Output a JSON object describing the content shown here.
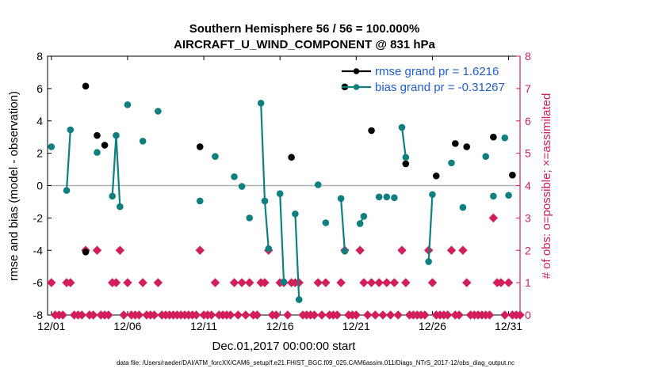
{
  "chart_data": {
    "type": "scatter",
    "title": "Southern Hemisphere 56 / 56 = 100.000%",
    "subtitle": "AIRCRAFT_U_WIND_COMPONENT @ 831 hPa",
    "xlabel": "Dec.01,2017 00:00:00 start",
    "ylabel": "rmse and bias (model - observation)",
    "ylabel_right": "# of obs: o=possible; ×=assimilated",
    "footnote": "data file: /Users/raeder/DAI/ATM_forcXX/CAM6_setup/f.e21.FHIST_BGC.f09_025.CAM6assim.011/Diags_NTrS_2017-12/obs_diag_output.nc",
    "xlim": [
      0.75,
      31.75
    ],
    "ylim": [
      -8,
      8
    ],
    "ylim_right": [
      0,
      8
    ],
    "x_ticks": [
      {
        "v": 1,
        "label": "12/01"
      },
      {
        "v": 6,
        "label": "12/06"
      },
      {
        "v": 11,
        "label": "12/11"
      },
      {
        "v": 16,
        "label": "12/16"
      },
      {
        "v": 21,
        "label": "12/21"
      },
      {
        "v": 26,
        "label": "12/26"
      },
      {
        "v": 31,
        "label": "12/31"
      }
    ],
    "y_ticks": [
      {
        "v": -8,
        "label": "-8"
      },
      {
        "v": -6,
        "label": "-6"
      },
      {
        "v": -4,
        "label": "-4"
      },
      {
        "v": -2,
        "label": "-2"
      },
      {
        "v": 0,
        "label": "0"
      },
      {
        "v": 2,
        "label": "2"
      },
      {
        "v": 4,
        "label": "4"
      },
      {
        "v": 6,
        "label": "6"
      },
      {
        "v": 8,
        "label": "8"
      }
    ],
    "y_ticks_right": [
      {
        "v": 0,
        "label": "0"
      },
      {
        "v": 1,
        "label": "1"
      },
      {
        "v": 2,
        "label": "2"
      },
      {
        "v": 3,
        "label": "3"
      },
      {
        "v": 4,
        "label": "4"
      },
      {
        "v": 5,
        "label": "5"
      },
      {
        "v": 6,
        "label": "6"
      },
      {
        "v": 7,
        "label": "7"
      },
      {
        "v": 8,
        "label": "8"
      }
    ],
    "legend": [
      {
        "name": "rmse grand pr = 1.6216",
        "color": "#000000"
      },
      {
        "name": "bias grand pr = -0.31267",
        "color": "#0f7f7f"
      }
    ],
    "series": [
      {
        "name": "rmse",
        "color": "#000000",
        "points": [
          [
            3.25,
            6.15
          ],
          [
            3.25,
            -4.1
          ],
          [
            4.0,
            3.1
          ],
          [
            4.5,
            2.5
          ],
          [
            10.75,
            2.4
          ],
          [
            16.75,
            1.75
          ],
          [
            20.25,
            6.1
          ],
          [
            22.0,
            3.4
          ],
          [
            24.25,
            1.35
          ],
          [
            26.25,
            0.6
          ],
          [
            27.5,
            2.6
          ],
          [
            28.25,
            2.4
          ],
          [
            30.0,
            3.0
          ],
          [
            31.25,
            0.65
          ]
        ],
        "segments": []
      },
      {
        "name": "bias",
        "color": "#0f7f7f",
        "points": [
          [
            1.0,
            2.4
          ],
          [
            2.0,
            -0.3
          ],
          [
            2.25,
            3.45
          ],
          [
            4.0,
            2.05
          ],
          [
            5.0,
            -0.65
          ],
          [
            5.25,
            3.1
          ],
          [
            5.5,
            -1.3
          ],
          [
            6.0,
            5.0
          ],
          [
            7.0,
            2.75
          ],
          [
            8.0,
            4.6
          ],
          [
            10.75,
            -0.95
          ],
          [
            11.75,
            1.8
          ],
          [
            13.0,
            0.55
          ],
          [
            13.5,
            -0.05
          ],
          [
            14.0,
            -2.0
          ],
          [
            14.75,
            5.1
          ],
          [
            15.0,
            -0.95
          ],
          [
            15.25,
            -3.9
          ],
          [
            16.0,
            -0.5
          ],
          [
            16.25,
            -5.95
          ],
          [
            17.0,
            -1.75
          ],
          [
            17.25,
            -7.05
          ],
          [
            18.5,
            0.05
          ],
          [
            19.0,
            -2.3
          ],
          [
            20.0,
            -0.8
          ],
          [
            20.25,
            -4.05
          ],
          [
            21.25,
            -2.35
          ],
          [
            21.5,
            -1.9
          ],
          [
            22.5,
            -0.7
          ],
          [
            23.0,
            -0.7
          ],
          [
            23.5,
            -0.75
          ],
          [
            24.0,
            3.6
          ],
          [
            24.25,
            1.75
          ],
          [
            25.75,
            -4.7
          ],
          [
            26.0,
            -0.55
          ],
          [
            27.25,
            1.4
          ],
          [
            28.0,
            -1.35
          ],
          [
            29.5,
            1.8
          ],
          [
            30.0,
            -0.65
          ],
          [
            30.75,
            2.95
          ],
          [
            31.0,
            -0.6
          ]
        ],
        "segments": [
          [
            [
              2.0,
              -0.3
            ],
            [
              2.25,
              3.45
            ]
          ],
          [
            [
              5.0,
              -0.65
            ],
            [
              5.25,
              3.1
            ],
            [
              5.5,
              -1.3
            ]
          ],
          [
            [
              14.75,
              5.1
            ],
            [
              15.0,
              -0.95
            ],
            [
              15.25,
              -3.9
            ]
          ],
          [
            [
              16.0,
              -0.5
            ],
            [
              16.25,
              -5.95
            ]
          ],
          [
            [
              17.0,
              -1.75
            ],
            [
              17.25,
              -7.05
            ]
          ],
          [
            [
              20.0,
              -0.8
            ],
            [
              20.25,
              -4.05
            ]
          ],
          [
            [
              21.25,
              -2.35
            ],
            [
              21.5,
              -1.9
            ]
          ],
          [
            [
              24.0,
              3.6
            ],
            [
              24.25,
              1.75
            ]
          ],
          [
            [
              25.75,
              -4.7
            ],
            [
              26.0,
              -0.55
            ]
          ]
        ]
      }
    ],
    "obs_possible": {
      "name": "# obs possible",
      "color": "#d21f5a",
      "counts": [
        [
          1.0,
          1
        ],
        [
          1.25,
          0
        ],
        [
          1.5,
          0
        ],
        [
          1.75,
          0
        ],
        [
          2.0,
          1
        ],
        [
          2.25,
          1
        ],
        [
          2.5,
          0
        ],
        [
          2.75,
          0
        ],
        [
          3.0,
          0
        ],
        [
          3.25,
          2
        ],
        [
          3.5,
          0
        ],
        [
          3.75,
          0
        ],
        [
          4.0,
          2
        ],
        [
          4.25,
          0
        ],
        [
          4.5,
          0
        ],
        [
          4.75,
          0
        ],
        [
          5.0,
          1
        ],
        [
          5.25,
          1
        ],
        [
          5.5,
          2
        ],
        [
          5.75,
          0
        ],
        [
          6.0,
          1
        ],
        [
          6.25,
          0
        ],
        [
          6.5,
          0
        ],
        [
          6.75,
          0
        ],
        [
          7.0,
          1
        ],
        [
          7.25,
          0
        ],
        [
          7.5,
          0
        ],
        [
          7.75,
          0
        ],
        [
          8.0,
          1
        ],
        [
          8.25,
          0
        ],
        [
          8.5,
          0
        ],
        [
          8.75,
          0
        ],
        [
          9.0,
          0
        ],
        [
          9.25,
          0
        ],
        [
          9.5,
          0
        ],
        [
          9.75,
          0
        ],
        [
          10.0,
          0
        ],
        [
          10.25,
          0
        ],
        [
          10.5,
          0
        ],
        [
          10.75,
          2
        ],
        [
          11.0,
          0
        ],
        [
          11.25,
          0
        ],
        [
          11.5,
          0
        ],
        [
          11.75,
          1
        ],
        [
          12.0,
          0
        ],
        [
          12.25,
          0
        ],
        [
          12.5,
          0
        ],
        [
          12.75,
          0
        ],
        [
          13.0,
          1
        ],
        [
          13.25,
          0
        ],
        [
          13.5,
          1
        ],
        [
          13.75,
          0
        ],
        [
          14.0,
          1
        ],
        [
          14.25,
          0
        ],
        [
          14.5,
          0
        ],
        [
          14.75,
          1
        ],
        [
          15.0,
          1
        ],
        [
          15.25,
          2
        ],
        [
          15.5,
          0
        ],
        [
          15.75,
          0
        ],
        [
          16.0,
          1
        ],
        [
          16.25,
          1
        ],
        [
          16.5,
          0
        ],
        [
          16.75,
          1
        ],
        [
          17.0,
          1
        ],
        [
          17.25,
          1
        ],
        [
          17.5,
          0
        ],
        [
          17.75,
          0
        ],
        [
          18.0,
          0
        ],
        [
          18.25,
          0
        ],
        [
          18.5,
          1
        ],
        [
          18.75,
          0
        ],
        [
          19.0,
          1
        ],
        [
          19.25,
          0
        ],
        [
          19.5,
          0
        ],
        [
          19.75,
          0
        ],
        [
          20.0,
          1
        ],
        [
          20.25,
          2
        ],
        [
          20.5,
          0
        ],
        [
          20.75,
          0
        ],
        [
          21.0,
          0
        ],
        [
          21.25,
          2
        ],
        [
          21.5,
          1
        ],
        [
          21.75,
          0
        ],
        [
          22.0,
          1
        ],
        [
          22.25,
          0
        ],
        [
          22.5,
          1
        ],
        [
          22.75,
          0
        ],
        [
          23.0,
          1
        ],
        [
          23.25,
          0
        ],
        [
          23.5,
          1
        ],
        [
          23.75,
          0
        ],
        [
          24.0,
          2
        ],
        [
          24.25,
          1
        ],
        [
          24.5,
          0
        ],
        [
          24.75,
          0
        ],
        [
          25.0,
          0
        ],
        [
          25.25,
          0
        ],
        [
          25.5,
          0
        ],
        [
          25.75,
          2
        ],
        [
          26.0,
          1
        ],
        [
          26.25,
          0
        ],
        [
          26.5,
          0
        ],
        [
          26.75,
          0
        ],
        [
          27.0,
          0
        ],
        [
          27.25,
          2
        ],
        [
          27.5,
          0
        ],
        [
          27.75,
          0
        ],
        [
          28.0,
          2
        ],
        [
          28.25,
          1
        ],
        [
          28.5,
          0
        ],
        [
          28.75,
          0
        ],
        [
          29.0,
          0
        ],
        [
          29.25,
          0
        ],
        [
          29.5,
          0
        ],
        [
          29.75,
          0
        ],
        [
          30.0,
          3
        ],
        [
          30.25,
          1
        ],
        [
          30.5,
          1
        ],
        [
          30.75,
          0
        ],
        [
          31.0,
          1
        ],
        [
          31.25,
          0
        ],
        [
          31.5,
          0
        ],
        [
          31.75,
          0
        ]
      ]
    }
  }
}
